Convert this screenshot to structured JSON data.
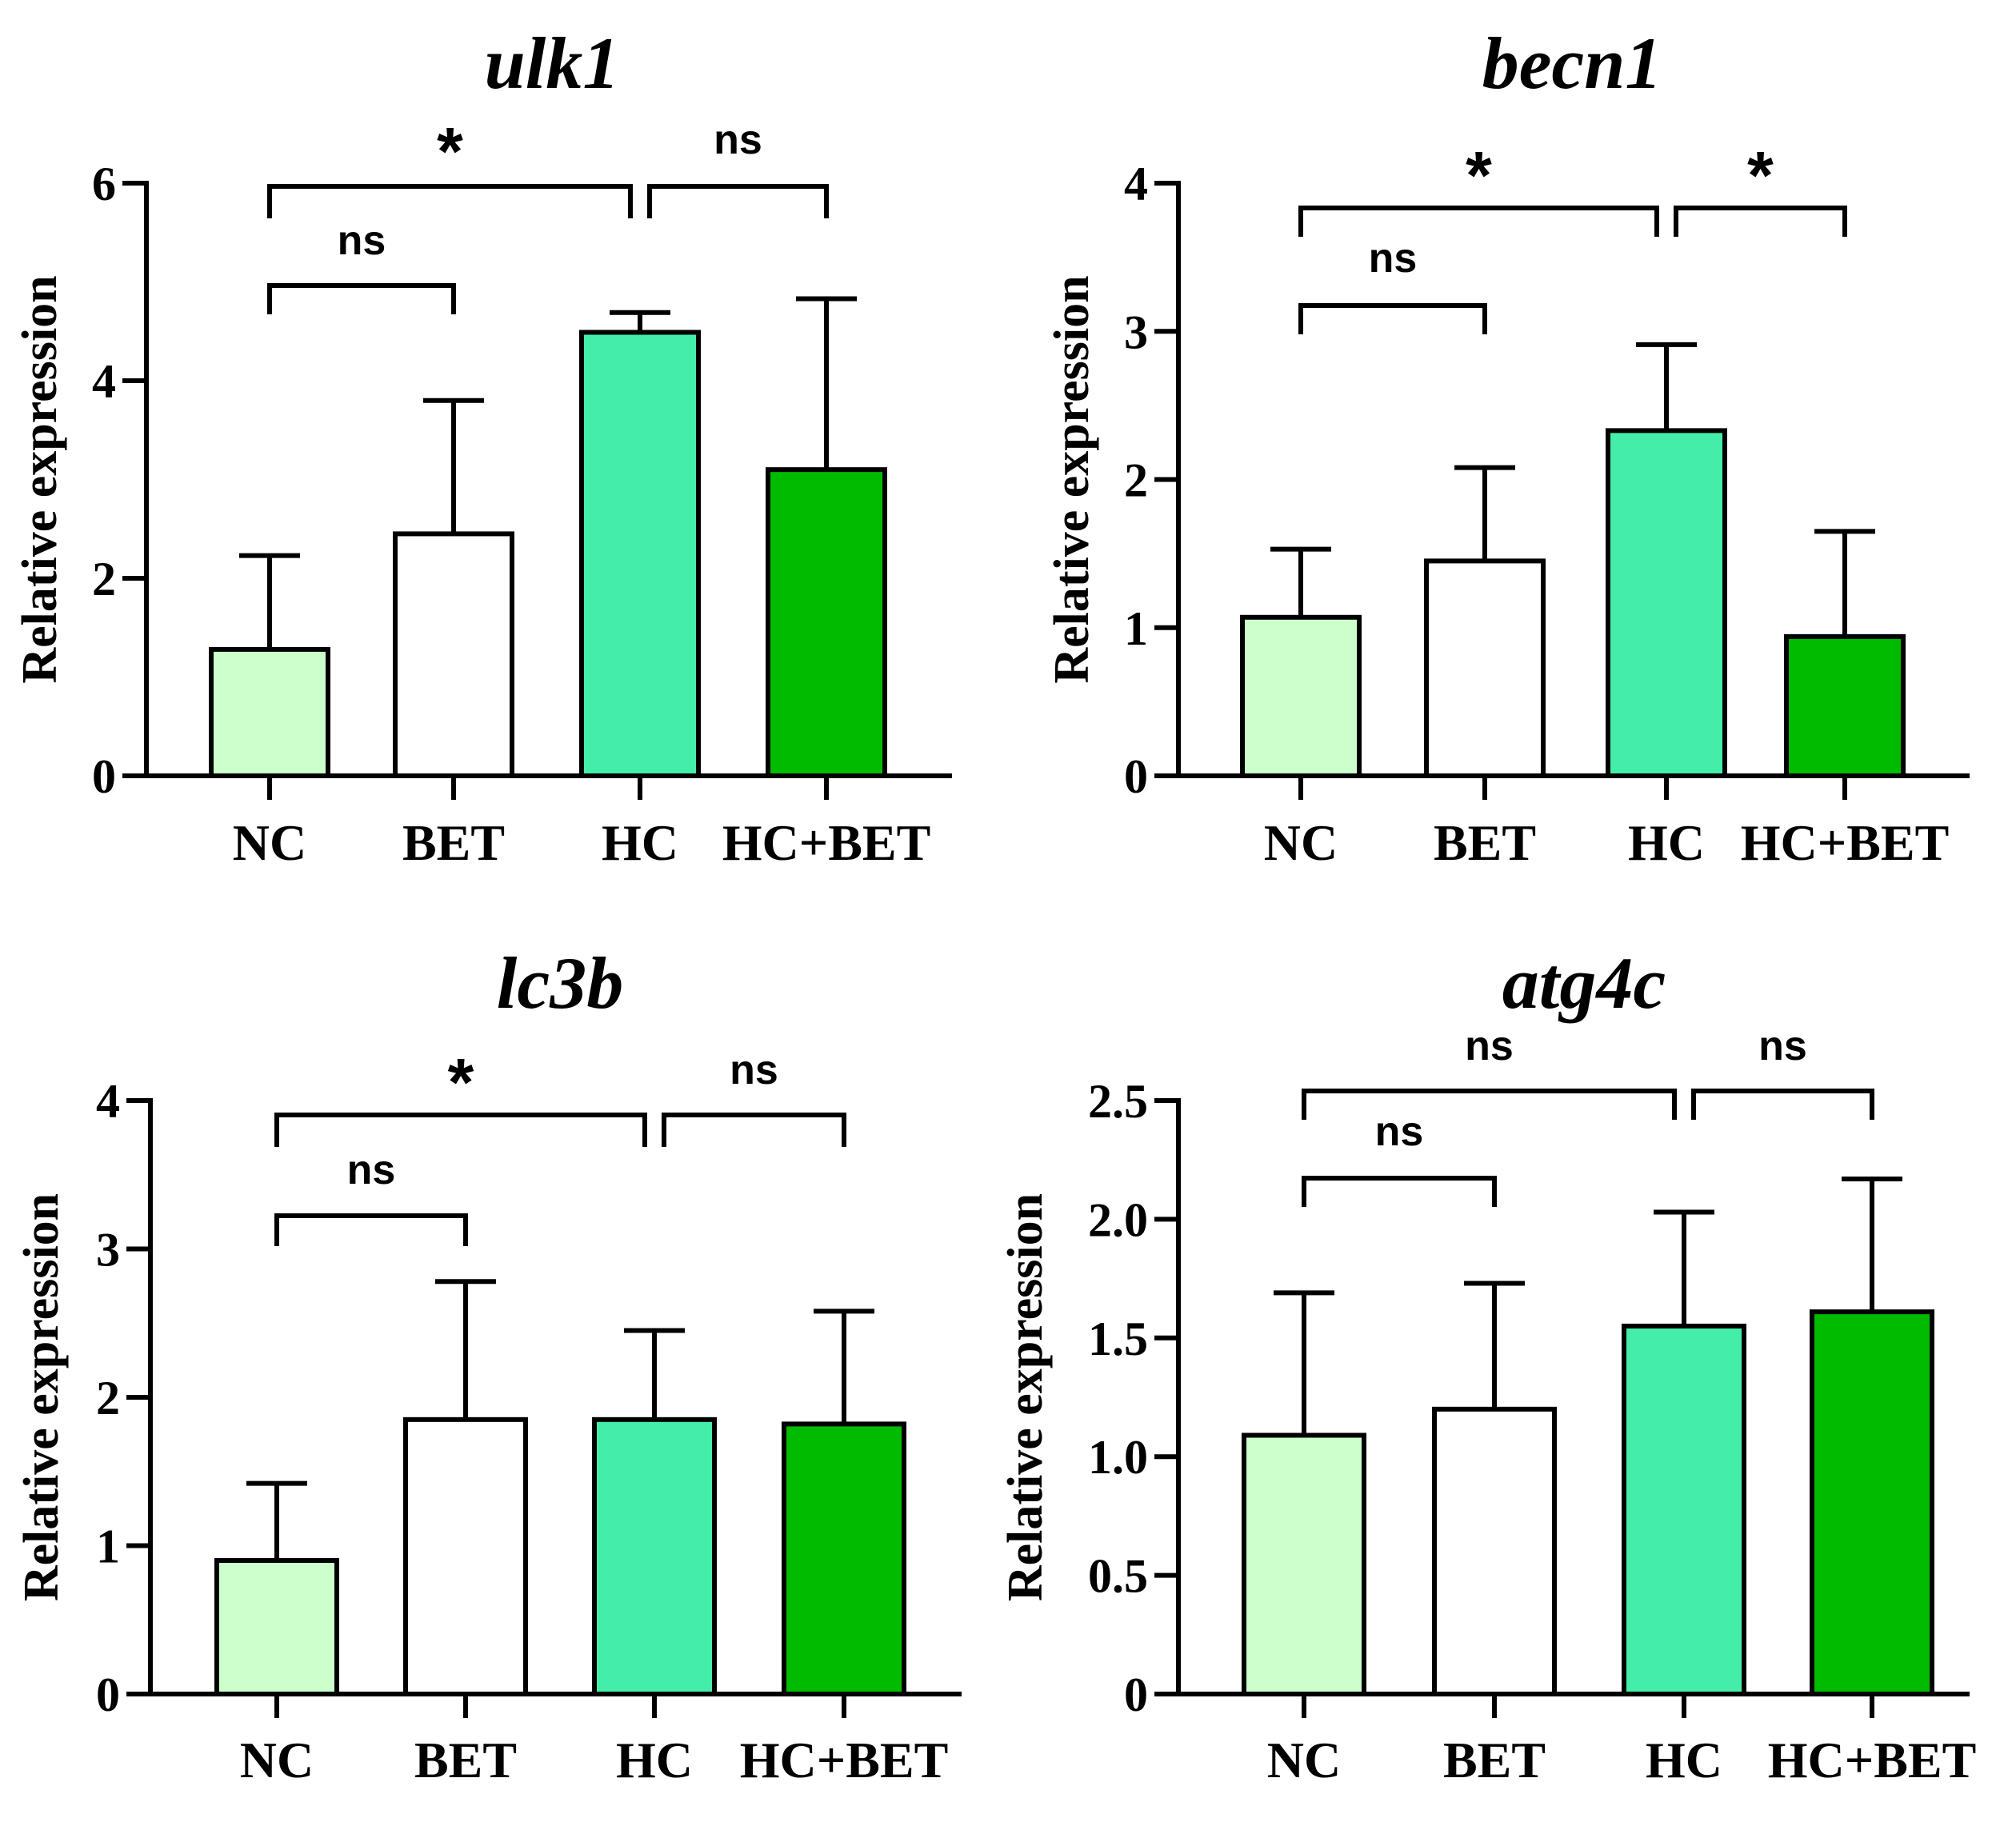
{
  "chart_data": [
    {
      "type": "bar",
      "title": "ulk1",
      "ylabel": "Relative expression",
      "xlabel": "",
      "categories": [
        "NC",
        "BET",
        "HC",
        "HC+BET"
      ],
      "colors": [
        "#ccffcc",
        "#ffffff",
        "#44eeaa",
        "#00bb00"
      ],
      "values": [
        1.28,
        2.45,
        4.49,
        3.1
      ],
      "errors": [
        0.95,
        1.35,
        0.2,
        1.73
      ],
      "ylim": [
        0,
        6
      ],
      "yticks": [
        "0",
        "2",
        "4",
        "6"
      ],
      "significance": [
        {
          "from": 0,
          "to": 1,
          "label": "ns"
        },
        {
          "from": 0,
          "to": 2,
          "label": "*"
        },
        {
          "from": 2,
          "to": 3,
          "label": "ns"
        }
      ]
    },
    {
      "type": "bar",
      "title": "becn1",
      "ylabel": "Relative expression",
      "xlabel": "",
      "categories": [
        "NC",
        "BET",
        "HC",
        "HC+BET"
      ],
      "colors": [
        "#ccffcc",
        "#ffffff",
        "#44eeaa",
        "#00bb00"
      ],
      "values": [
        1.07,
        1.45,
        2.33,
        0.94
      ],
      "errors": [
        0.46,
        0.63,
        0.58,
        0.71
      ],
      "ylim": [
        0,
        4
      ],
      "yticks": [
        "0",
        "1",
        "2",
        "3",
        "4"
      ],
      "significance": [
        {
          "from": 0,
          "to": 1,
          "label": "ns"
        },
        {
          "from": 0,
          "to": 2,
          "label": "*"
        },
        {
          "from": 2,
          "to": 3,
          "label": "*"
        }
      ]
    },
    {
      "type": "bar",
      "title": "lc3b",
      "ylabel": "Relative expression",
      "xlabel": "",
      "categories": [
        "NC",
        "BET",
        "HC",
        "HC+BET"
      ],
      "colors": [
        "#ccffcc",
        "#ffffff",
        "#44eeaa",
        "#00bb00"
      ],
      "values": [
        0.9,
        1.85,
        1.85,
        1.82
      ],
      "errors": [
        0.52,
        0.93,
        0.6,
        0.76
      ],
      "ylim": [
        0,
        4
      ],
      "yticks": [
        "0",
        "1",
        "2",
        "3",
        "4"
      ],
      "significance": [
        {
          "from": 0,
          "to": 1,
          "label": "ns"
        },
        {
          "from": 0,
          "to": 2,
          "label": "*"
        },
        {
          "from": 2,
          "to": 3,
          "label": "ns"
        }
      ]
    },
    {
      "type": "bar",
      "title": "atg4c",
      "ylabel": "Relative expression",
      "xlabel": "",
      "categories": [
        "NC",
        "BET",
        "HC",
        "HC+BET"
      ],
      "colors": [
        "#ccffcc",
        "#ffffff",
        "#44eeaa",
        "#00bb00"
      ],
      "values": [
        1.09,
        1.2,
        1.55,
        1.61
      ],
      "errors": [
        0.6,
        0.53,
        0.48,
        0.56
      ],
      "ylim": [
        0,
        2.5
      ],
      "yticks": [
        "0",
        "0.5",
        "1.0",
        "1.5",
        "2.0",
        "2.5"
      ],
      "significance": [
        {
          "from": 0,
          "to": 1,
          "label": "ns"
        },
        {
          "from": 0,
          "to": 2,
          "label": "ns"
        },
        {
          "from": 2,
          "to": 3,
          "label": "ns"
        }
      ]
    }
  ]
}
